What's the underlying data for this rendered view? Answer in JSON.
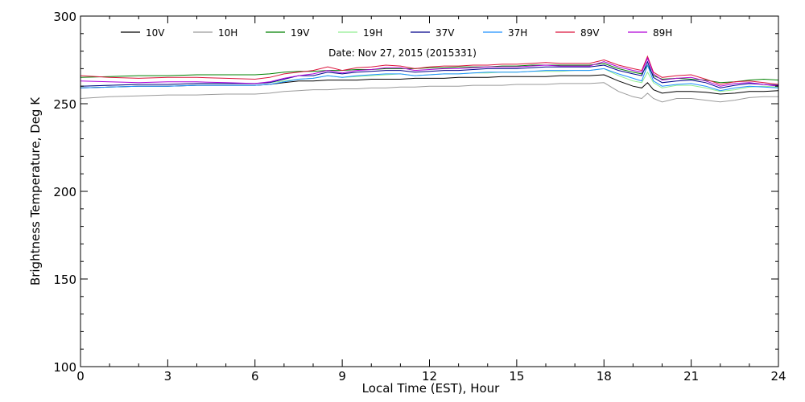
{
  "chart_data": {
    "type": "line",
    "annotation": "Date: Nov 27, 2015 (2015331)",
    "xlabel": "Local Time (EST), Hour",
    "ylabel": "Brightness Temperature, Deg  K",
    "xlim": [
      0,
      24
    ],
    "ylim": [
      100,
      300
    ],
    "x_ticks": [
      0,
      3,
      6,
      9,
      12,
      15,
      18,
      21,
      24
    ],
    "y_ticks": [
      100,
      150,
      200,
      250,
      300
    ],
    "grid": false,
    "legend_position": "top",
    "x": [
      0,
      1,
      2,
      3,
      4,
      5,
      6,
      6.5,
      7,
      7.5,
      8,
      8.5,
      9,
      9.5,
      10,
      10.5,
      11,
      11.5,
      12,
      12.5,
      13,
      13.5,
      14,
      14.5,
      15,
      15.5,
      16,
      16.5,
      17,
      17.5,
      18,
      18.5,
      19,
      19.3,
      19.5,
      19.7,
      20,
      20.5,
      21,
      21.5,
      22,
      22.5,
      23,
      23.5,
      24
    ],
    "series": [
      {
        "name": "10V",
        "color": "#000000",
        "values": [
          259,
          259.5,
          260,
          260,
          260.5,
          260.5,
          260.5,
          261,
          262,
          263,
          263,
          263.5,
          263.5,
          263.5,
          264,
          264,
          264,
          264.5,
          264.5,
          264.5,
          265,
          265,
          265,
          265.5,
          265.5,
          265.5,
          265.5,
          266,
          266,
          266,
          266.5,
          263,
          260,
          259,
          262,
          258,
          256,
          257,
          257,
          256.5,
          255.5,
          256,
          257,
          257,
          257.5
        ]
      },
      {
        "name": "10H",
        "color": "#9a9a9a",
        "values": [
          253,
          254,
          254.5,
          255,
          255,
          255.5,
          255.5,
          256,
          257,
          257.5,
          258,
          258,
          258.5,
          258.5,
          259,
          259,
          259.5,
          259.5,
          260,
          260,
          260,
          260.5,
          260.5,
          260.5,
          261,
          261,
          261,
          261.5,
          261.5,
          261.5,
          262,
          257,
          254,
          253,
          256,
          253,
          251,
          253,
          253,
          252,
          251,
          252,
          253.5,
          254,
          254
        ]
      },
      {
        "name": "19V",
        "color": "#008000",
        "values": [
          265,
          265.5,
          266,
          266,
          266.5,
          266.5,
          266.5,
          267,
          268,
          268.5,
          268.5,
          269,
          269,
          269.5,
          269.5,
          270,
          270,
          270,
          270.5,
          270.5,
          271,
          271,
          271,
          271.5,
          271.5,
          272,
          272,
          272,
          272,
          272,
          273,
          270,
          268,
          267,
          272,
          266,
          264,
          264.5,
          264,
          263.5,
          262,
          262.5,
          263.5,
          264,
          263.5
        ]
      },
      {
        "name": "19H",
        "color": "#90ee90",
        "values": [
          260,
          260.5,
          261,
          261,
          261.5,
          261.5,
          261.5,
          262,
          263,
          264,
          264.5,
          266,
          265,
          265.5,
          266,
          266.5,
          267,
          266,
          266.5,
          267,
          267,
          267.5,
          267.5,
          268,
          268,
          268.5,
          268.5,
          268.5,
          269,
          269,
          270,
          266,
          263,
          262,
          268,
          262,
          259,
          260.5,
          260.5,
          259,
          257,
          258,
          259.5,
          260,
          259.5
        ]
      },
      {
        "name": "37V",
        "color": "#00008b",
        "values": [
          260,
          260.5,
          261,
          261,
          261.5,
          261.5,
          261.5,
          262,
          264,
          266,
          266,
          268,
          267,
          268,
          268.5,
          269,
          269,
          268,
          268.5,
          269,
          269,
          269.5,
          270,
          270,
          270,
          270.5,
          271,
          271,
          271,
          271,
          272,
          269,
          267,
          266,
          274,
          265,
          262,
          263,
          263.5,
          262,
          259,
          260.5,
          261.5,
          261,
          260.5
        ]
      },
      {
        "name": "37H",
        "color": "#1e90ff",
        "values": [
          259,
          259.5,
          260,
          260,
          260.5,
          260.5,
          260.5,
          261,
          262.5,
          264,
          264.5,
          266,
          265,
          266,
          266.5,
          267,
          267,
          266,
          266.5,
          267,
          267,
          267.5,
          268,
          268,
          268,
          268.5,
          269,
          269,
          269,
          269,
          270,
          267,
          264.5,
          263,
          272,
          263,
          260,
          261,
          261.5,
          260,
          257.5,
          259,
          260,
          259.5,
          259
        ]
      },
      {
        "name": "89V",
        "color": "#dc143c",
        "values": [
          266,
          265,
          264.5,
          265,
          265,
          264.5,
          264,
          265,
          267,
          268,
          269,
          271,
          269,
          270.5,
          271,
          272,
          271.5,
          270,
          271,
          271.5,
          271.5,
          272,
          272,
          272.5,
          272.5,
          273,
          273.5,
          273,
          273,
          273,
          275,
          272,
          270,
          269,
          277,
          268,
          265,
          266,
          266.5,
          264,
          261,
          262.5,
          263,
          262,
          261
        ]
      },
      {
        "name": "89H",
        "color": "#b000d8",
        "values": [
          263,
          262.5,
          262,
          262.5,
          262.5,
          262,
          261.5,
          262.5,
          264.5,
          266,
          267,
          269,
          267.5,
          269,
          269.5,
          270.5,
          270.5,
          269,
          269.5,
          270,
          270,
          270.5,
          271,
          271,
          271,
          271.5,
          272,
          271.5,
          271.5,
          271.5,
          274,
          271,
          269,
          268,
          276,
          267,
          263.5,
          264.5,
          265,
          263,
          260,
          261.5,
          262,
          261,
          260
        ]
      }
    ]
  }
}
